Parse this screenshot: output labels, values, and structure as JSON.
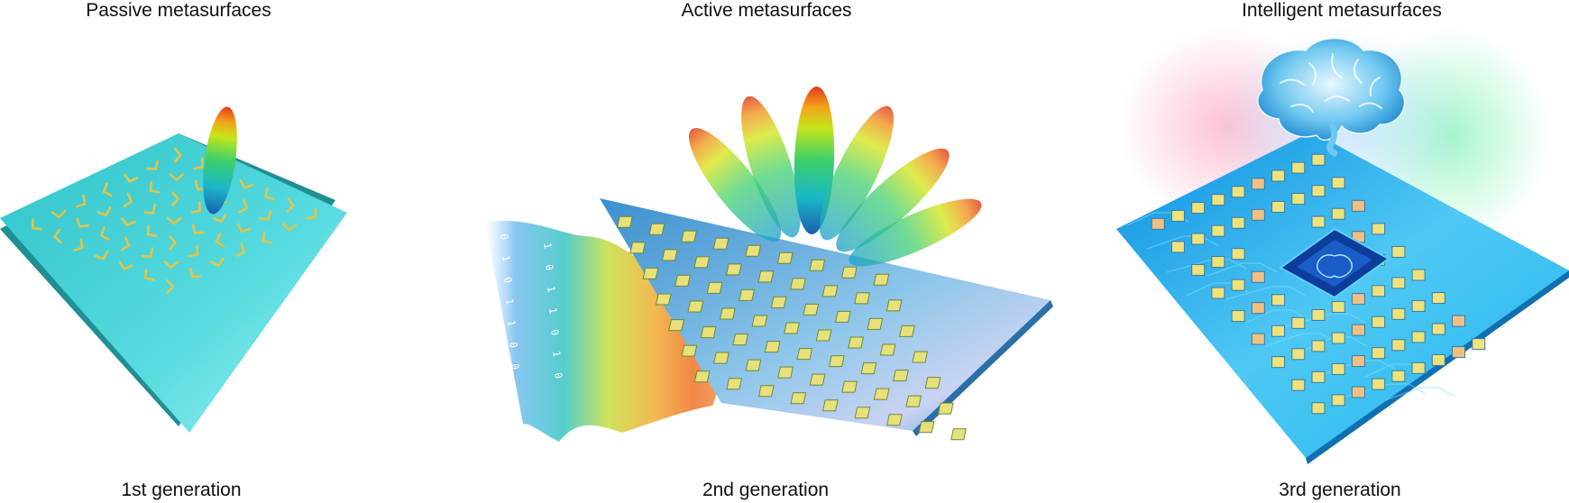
{
  "panels": [
    {
      "title": "Passive metasurfaces",
      "generation": "1st generation"
    },
    {
      "title": "Active metasurfaces",
      "generation": "2nd generation"
    },
    {
      "title": "Intelligent metasurfaces",
      "generation": "3rd generation"
    }
  ],
  "wave_bits": [
    "0",
    "1",
    "0",
    "1",
    "1",
    "0",
    "0",
    "1",
    "0",
    "1",
    "1",
    "0",
    "1",
    "0"
  ],
  "colors": {
    "passive_plate": "#3fd0d6",
    "active_plate": "#5aa8dc",
    "intelligent_plate": "#1aa6e6",
    "element_gold": "#e2c44a",
    "beam_tip": "#e8401c",
    "beam_mid": "#b8e61a",
    "beam_base": "#1a8fd0"
  },
  "icons": [
    "brain-icon",
    "chip-icon",
    "beam-lobe-icon",
    "coding-wave-icon"
  ]
}
